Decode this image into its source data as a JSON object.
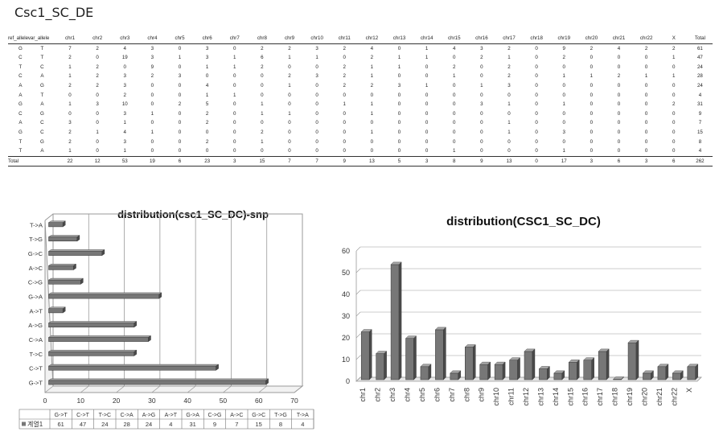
{
  "title": "Csc1_SC_DE",
  "table": {
    "headers": [
      "ref_allele",
      "var_allele",
      "chr1",
      "chr2",
      "chr3",
      "chr4",
      "chr5",
      "chr6",
      "chr7",
      "chr8",
      "chr9",
      "chr10",
      "chr11",
      "chr12",
      "chr13",
      "chr14",
      "chr15",
      "chr16",
      "chr17",
      "chr18",
      "chr19",
      "chr20",
      "chr21",
      "chr22",
      "X",
      "Total"
    ],
    "rows": [
      [
        "G",
        "T",
        "7",
        "2",
        "4",
        "3",
        "0",
        "3",
        "0",
        "2",
        "2",
        "3",
        "2",
        "4",
        "0",
        "1",
        "4",
        "3",
        "2",
        "0",
        "9",
        "2",
        "4",
        "2",
        "2",
        "61"
      ],
      [
        "C",
        "T",
        "2",
        "0",
        "19",
        "3",
        "1",
        "3",
        "1",
        "6",
        "1",
        "1",
        "0",
        "2",
        "1",
        "1",
        "0",
        "2",
        "1",
        "0",
        "2",
        "0",
        "0",
        "0",
        "1",
        "47"
      ],
      [
        "T",
        "C",
        "1",
        "2",
        "0",
        "9",
        "0",
        "1",
        "1",
        "2",
        "0",
        "0",
        "2",
        "1",
        "1",
        "0",
        "2",
        "0",
        "2",
        "0",
        "0",
        "0",
        "0",
        "0",
        "0",
        "24"
      ],
      [
        "C",
        "A",
        "1",
        "2",
        "3",
        "2",
        "3",
        "0",
        "0",
        "0",
        "2",
        "3",
        "2",
        "1",
        "0",
        "0",
        "1",
        "0",
        "2",
        "0",
        "1",
        "1",
        "2",
        "1",
        "1",
        "28"
      ],
      [
        "A",
        "G",
        "2",
        "2",
        "3",
        "0",
        "0",
        "4",
        "0",
        "0",
        "1",
        "0",
        "2",
        "2",
        "3",
        "1",
        "0",
        "1",
        "3",
        "0",
        "0",
        "0",
        "0",
        "0",
        "0",
        "24"
      ],
      [
        "A",
        "T",
        "0",
        "0",
        "2",
        "0",
        "0",
        "1",
        "1",
        "0",
        "0",
        "0",
        "0",
        "0",
        "0",
        "0",
        "0",
        "0",
        "0",
        "0",
        "0",
        "0",
        "0",
        "0",
        "0",
        "4"
      ],
      [
        "G",
        "A",
        "1",
        "3",
        "10",
        "0",
        "2",
        "5",
        "0",
        "1",
        "0",
        "0",
        "1",
        "1",
        "0",
        "0",
        "0",
        "3",
        "1",
        "0",
        "1",
        "0",
        "0",
        "0",
        "2",
        "31"
      ],
      [
        "C",
        "G",
        "0",
        "0",
        "3",
        "1",
        "0",
        "2",
        "0",
        "1",
        "1",
        "0",
        "0",
        "1",
        "0",
        "0",
        "0",
        "0",
        "0",
        "0",
        "0",
        "0",
        "0",
        "0",
        "0",
        "9"
      ],
      [
        "A",
        "C",
        "3",
        "0",
        "1",
        "0",
        "0",
        "2",
        "0",
        "0",
        "0",
        "0",
        "0",
        "0",
        "0",
        "0",
        "0",
        "0",
        "1",
        "0",
        "0",
        "0",
        "0",
        "0",
        "0",
        "7"
      ],
      [
        "G",
        "C",
        "2",
        "1",
        "4",
        "1",
        "0",
        "0",
        "0",
        "2",
        "0",
        "0",
        "0",
        "1",
        "0",
        "0",
        "0",
        "0",
        "1",
        "0",
        "3",
        "0",
        "0",
        "0",
        "0",
        "15"
      ],
      [
        "T",
        "G",
        "2",
        "0",
        "3",
        "0",
        "0",
        "2",
        "0",
        "1",
        "0",
        "0",
        "0",
        "0",
        "0",
        "0",
        "0",
        "0",
        "0",
        "0",
        "0",
        "0",
        "0",
        "0",
        "0",
        "8"
      ],
      [
        "T",
        "A",
        "1",
        "0",
        "1",
        "0",
        "0",
        "0",
        "0",
        "0",
        "0",
        "0",
        "0",
        "0",
        "0",
        "0",
        "1",
        "0",
        "0",
        "0",
        "1",
        "0",
        "0",
        "0",
        "0",
        "4"
      ]
    ],
    "total_label": "Total",
    "totals": [
      "22",
      "12",
      "53",
      "19",
      "6",
      "23",
      "3",
      "15",
      "7",
      "7",
      "9",
      "13",
      "5",
      "3",
      "8",
      "9",
      "13",
      "0",
      "17",
      "3",
      "6",
      "3",
      "6",
      "262"
    ]
  },
  "colors": {
    "bar": "#777777",
    "bar_dark": "#4a4a4a",
    "bar_light": "#a6a6a6",
    "grid": "#9a9a9a"
  },
  "chart_data": [
    {
      "type": "bar",
      "orientation": "horizontal",
      "title": "distribution(csc1_SC_DC)-snp",
      "categories": [
        "G->T",
        "C->T",
        "T->C",
        "C->A",
        "A->G",
        "A->T",
        "G->A",
        "C->G",
        "A->C",
        "G->C",
        "T->G",
        "T->A"
      ],
      "series": [
        {
          "name": "계열1",
          "values": [
            61,
            47,
            24,
            28,
            24,
            4,
            31,
            9,
            7,
            15,
            8,
            4
          ]
        }
      ],
      "xlim": [
        0,
        70
      ],
      "xticks": [
        "0",
        "10",
        "20",
        "30",
        "40",
        "50",
        "60",
        "70"
      ],
      "grid": true,
      "legend": "data-table-below"
    },
    {
      "type": "bar",
      "title": "distribution(CSC1_SC_DC)",
      "categories": [
        "chr1",
        "chr2",
        "chr3",
        "chr4",
        "chr5",
        "chr6",
        "chr7",
        "chr8",
        "chr9",
        "chr10",
        "chr11",
        "chr12",
        "chr13",
        "chr14",
        "chr15",
        "chr16",
        "chr17",
        "chr18",
        "chr19",
        "chr20",
        "chr21",
        "chr22",
        "X"
      ],
      "values": [
        22,
        12,
        53,
        19,
        6,
        23,
        3,
        15,
        7,
        7,
        9,
        13,
        5,
        3,
        8,
        9,
        13,
        0,
        17,
        3,
        6,
        3,
        6
      ],
      "ylim": [
        0,
        60
      ],
      "yticks": [
        "0",
        "10",
        "20",
        "30",
        "40",
        "50",
        "60"
      ],
      "grid": true
    }
  ]
}
